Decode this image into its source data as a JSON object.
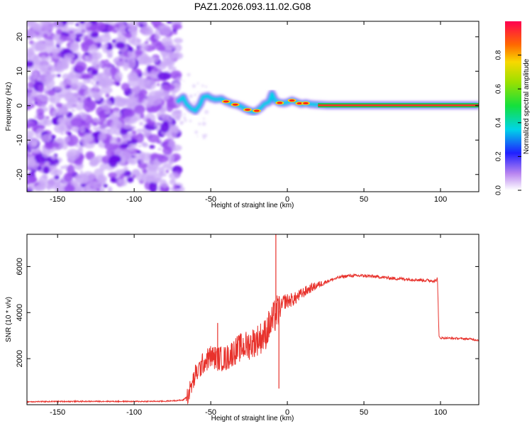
{
  "figure": {
    "title": "PAZ1.2026.093.11.02.G08"
  },
  "chart_data": [
    {
      "type": "heatmap",
      "title": "PAZ1.2026.093.11.02.G08",
      "xlabel": "Height of straight line (km)",
      "ylabel": "Frequency (Hz)",
      "xlim": [
        -170,
        125
      ],
      "ylim": [
        -25,
        24.5
      ],
      "xticks": [
        -150,
        -100,
        -50,
        0,
        50,
        100
      ],
      "yticks": [
        -20,
        -10,
        0,
        10,
        20
      ],
      "noise_region_x": [
        -170,
        -71
      ],
      "signal_ridge": {
        "x": [
          -72,
          -68,
          -66,
          -63,
          -60,
          -57,
          -55,
          -52,
          -50,
          -47,
          -43,
          -40,
          -36,
          -33,
          -30,
          -28,
          -25,
          -22,
          -20,
          -17,
          -15,
          -12,
          -10,
          -8,
          -5,
          -2,
          0,
          3,
          6,
          9,
          12,
          15,
          18,
          22,
          26,
          30,
          40,
          60,
          80,
          100,
          120,
          125
        ],
        "freq": [
          1,
          2.5,
          0.5,
          -0.8,
          -1.5,
          0.3,
          2.5,
          2.8,
          2.2,
          1.8,
          2.0,
          1.2,
          0.5,
          0.2,
          -0.3,
          -0.8,
          -1.4,
          -1.8,
          -1.5,
          -0.5,
          0.5,
          1.0,
          3.5,
          1.5,
          0.8,
          0.7,
          0.9,
          1.5,
          1.0,
          0.5,
          0.7,
          0.4,
          0.3,
          0.2,
          0.1,
          0.1,
          0.1,
          0.1,
          0.1,
          0.1,
          0.1,
          0.1
        ]
      },
      "colorbar": {
        "label": "Normalized spectral amplitude",
        "range": [
          0,
          1
        ],
        "ticks": [
          "0.0",
          "0.2",
          "0.4",
          "0.6",
          "0.8"
        ]
      }
    },
    {
      "type": "line",
      "xlabel": "Height of straight line (km)",
      "ylabel": "SNR (10 * v/v)",
      "xlim": [
        -170,
        125
      ],
      "ylim": [
        0,
        7400
      ],
      "xticks": [
        -150,
        -100,
        -50,
        0,
        50,
        100
      ],
      "yticks": [
        2000,
        4000,
        6000
      ],
      "color": "#e8322c",
      "series": [
        {
          "name": "SNR",
          "x": [
            -170,
            -150,
            -120,
            -100,
            -80,
            -68,
            -65,
            -62,
            -60,
            -55,
            -50,
            -45,
            -40,
            -35,
            -30,
            -25,
            -20,
            -15,
            -12,
            -10,
            -7,
            -5,
            -4,
            -2,
            0,
            5,
            10,
            15,
            20,
            25,
            30,
            35,
            40,
            50,
            60,
            70,
            80,
            90,
            97,
            98,
            99,
            100,
            110,
            120,
            125
          ],
          "values": [
            130,
            140,
            145,
            140,
            150,
            200,
            400,
            900,
            1300,
            1800,
            2100,
            2000,
            2000,
            2300,
            2500,
            2600,
            2800,
            3000,
            3400,
            3600,
            4000,
            4100,
            4200,
            4500,
            4500,
            4600,
            4850,
            5050,
            5200,
            5330,
            5450,
            5550,
            5600,
            5600,
            5550,
            5480,
            5450,
            5400,
            5380,
            5500,
            2950,
            2900,
            2880,
            2850,
            2800
          ]
        }
      ],
      "spikes": [
        {
          "x": -45.5,
          "y": 3550
        },
        {
          "x": -7.5,
          "y": 7400
        },
        {
          "x": -5.5,
          "y": 700
        }
      ]
    }
  ]
}
